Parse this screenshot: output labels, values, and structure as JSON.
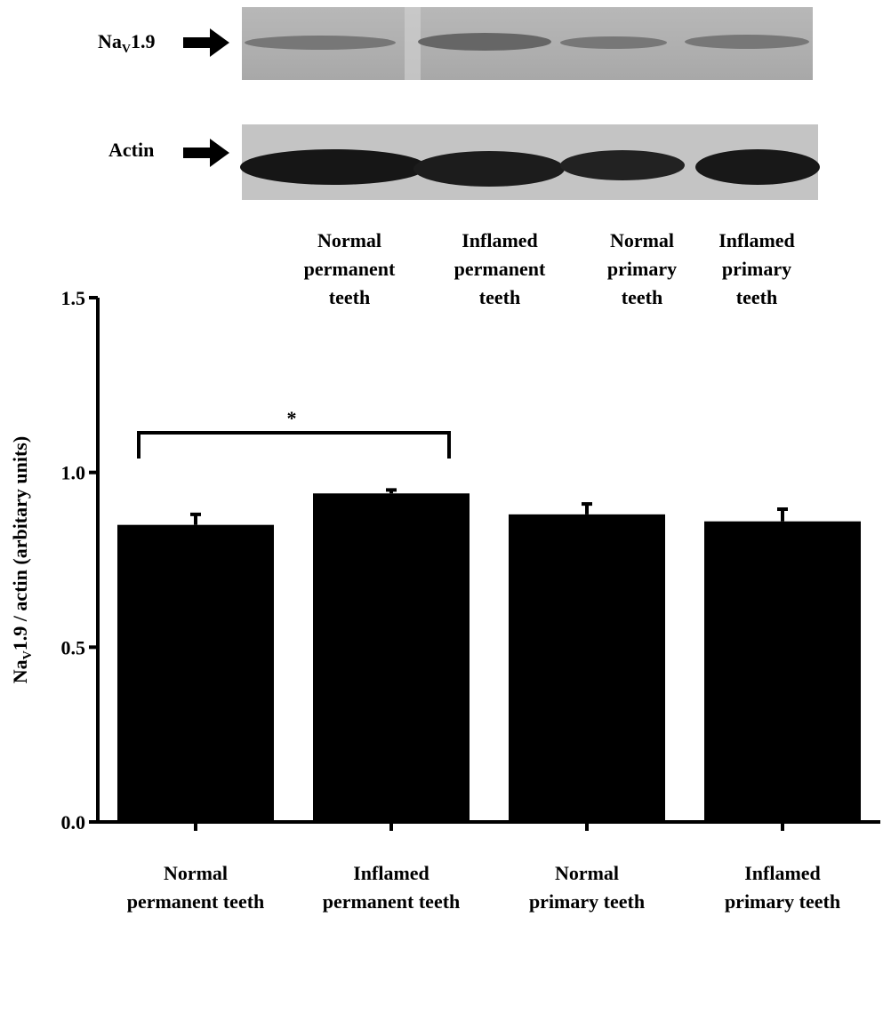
{
  "chart_data": {
    "type": "bar",
    "y_label": [
      "Na",
      "V",
      "1.9 / actin (arbitary units)"
    ],
    "categories": [
      "Normal\npermanent teeth",
      "Inflamed\npermanent teeth",
      "Normal\nprimary teeth",
      "Inflamed\nprimary teeth"
    ],
    "values": [
      0.85,
      0.94,
      0.88,
      0.86
    ],
    "errors": [
      0.03,
      0.01,
      0.03,
      0.035
    ],
    "color": "#000000",
    "ylim": [
      0,
      1.5
    ],
    "yticks": [
      {
        "value": 0,
        "label": "0.0"
      },
      {
        "value": 0.5,
        "label": "0.5"
      },
      {
        "value": 1,
        "label": "1.0"
      },
      {
        "value": 1.5,
        "label": "1.5"
      }
    ],
    "annotation": "*"
  },
  "blot": {
    "nav_label": [
      "Na",
      "V",
      "1.9"
    ],
    "actin_label": "Actin",
    "lanes": [
      "Normal\npermanent\nteeth",
      "Inflamed\npermanent\nteeth",
      "Normal\nprimary\nteeth",
      "Inflamed\nprimary\nteeth"
    ]
  }
}
